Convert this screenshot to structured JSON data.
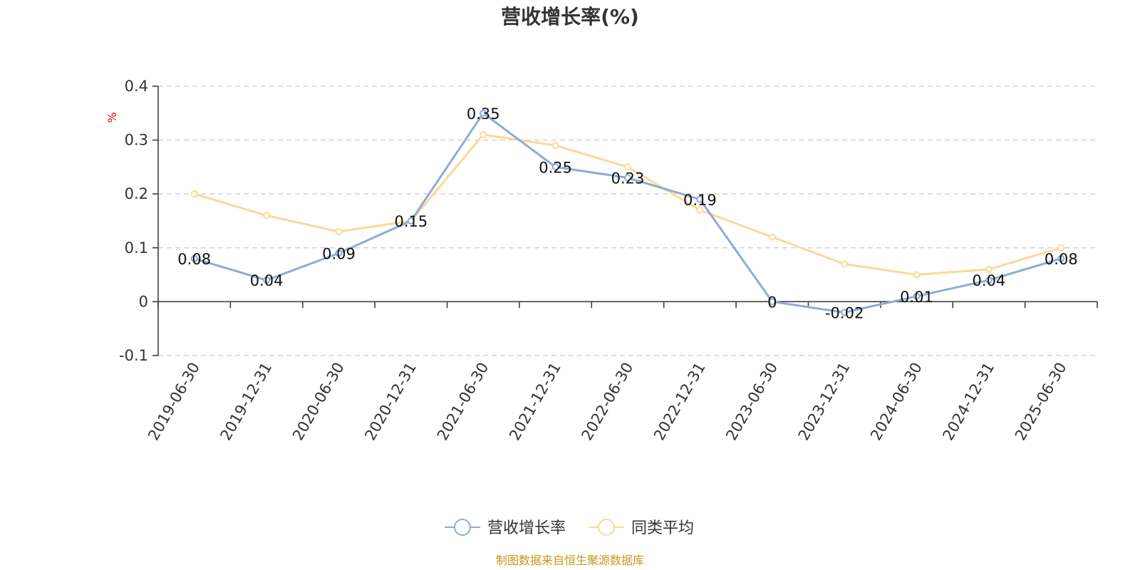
{
  "chart_data": {
    "type": "line",
    "title": "营收增长率(%)",
    "ylabel": "%",
    "ylim": [
      -0.1,
      0.4
    ],
    "yticks": [
      -0.1,
      0,
      0.1,
      0.2,
      0.3,
      0.4
    ],
    "ytick_labels": [
      "-0.1",
      "0",
      "0.1",
      "0.2",
      "0.3",
      "0.4"
    ],
    "grid": true,
    "legend_position": "bottom-center",
    "categories": [
      "2019-06-30",
      "2019-12-31",
      "2020-06-30",
      "2020-12-31",
      "2021-06-30",
      "2021-12-31",
      "2022-06-30",
      "2022-12-31",
      "2023-06-30",
      "2023-12-31",
      "2024-06-30",
      "2024-12-31",
      "2025-06-30"
    ],
    "series": [
      {
        "name": "营收增长率",
        "color": "#8fabd8",
        "values": [
          0.08,
          0.04,
          0.09,
          0.15,
          0.35,
          0.25,
          0.23,
          0.19,
          0,
          -0.02,
          0.01,
          0.04,
          0.08
        ],
        "labels": [
          "0.08",
          "0.04",
          "0.09",
          "0.15",
          "0.35",
          "0.25",
          "0.23",
          "0.19",
          "0",
          "-0.02",
          "0.01",
          "0.04",
          "0.08"
        ]
      },
      {
        "name": "同类平均",
        "color": "#fbd999",
        "values": [
          0.2,
          0.16,
          0.13,
          0.15,
          0.31,
          0.29,
          0.25,
          0.17,
          0.12,
          0.07,
          0.05,
          0.06,
          0.1
        ]
      }
    ]
  },
  "source_text": "制图数据来自恒生聚源数据库"
}
